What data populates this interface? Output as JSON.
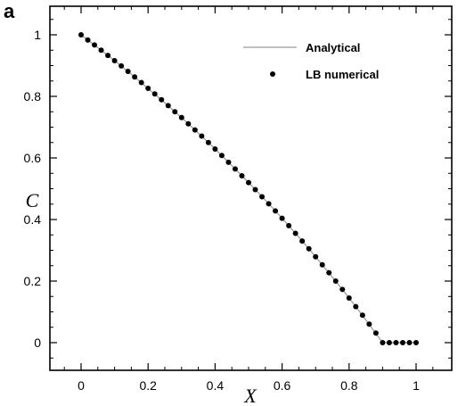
{
  "panel_label": "a",
  "chart_data": {
    "type": "scatter",
    "title": "",
    "xlabel": "X",
    "ylabel": "C",
    "xlim": [
      -0.1,
      1.06
    ],
    "ylim": [
      -0.1,
      1.1
    ],
    "xticks": [
      0,
      0.2,
      0.4,
      0.6,
      0.8,
      1
    ],
    "xtick_labels": [
      "0",
      "0.2",
      "0.4",
      "0.6",
      "0.8",
      "1"
    ],
    "yticks": [
      0,
      0.2,
      0.4,
      0.6,
      0.8,
      1
    ],
    "ytick_labels": [
      "0",
      "0.2",
      "0.4",
      "0.6",
      "0.8",
      "1"
    ],
    "grid": false,
    "legend_position": "top-right",
    "series": [
      {
        "name": "Analytical",
        "style": "line",
        "color": "#999999",
        "x": [
          0,
          0.05,
          0.1,
          0.15,
          0.2,
          0.25,
          0.3,
          0.35,
          0.4,
          0.45,
          0.5,
          0.55,
          0.6,
          0.65,
          0.7,
          0.75,
          0.8,
          0.85,
          0.9,
          0.95,
          1
        ],
        "y": [
          1,
          0.958,
          0.916,
          0.872,
          0.826,
          0.779,
          0.731,
          0.681,
          0.629,
          0.575,
          0.52,
          0.463,
          0.404,
          0.343,
          0.279,
          0.213,
          0.145,
          0.074,
          0.0,
          -0.0,
          0
        ]
      },
      {
        "name": "LB numerical",
        "style": "points",
        "color": "#000000",
        "x": [
          0,
          0.02,
          0.04,
          0.06,
          0.08,
          0.1,
          0.12,
          0.14,
          0.16,
          0.18,
          0.2,
          0.22,
          0.24,
          0.26,
          0.28,
          0.3,
          0.32,
          0.34,
          0.36,
          0.38,
          0.4,
          0.42,
          0.44,
          0.46,
          0.48,
          0.5,
          0.52,
          0.54,
          0.56,
          0.58,
          0.6,
          0.62,
          0.64,
          0.66,
          0.68,
          0.7,
          0.72,
          0.74,
          0.76,
          0.78,
          0.8,
          0.82,
          0.84,
          0.86,
          0.88,
          0.9,
          0.92,
          0.94,
          0.96,
          0.98,
          1
        ],
        "y": [
          1,
          0.983,
          0.967,
          0.95,
          0.933,
          0.916,
          0.899,
          0.881,
          0.863,
          0.845,
          0.826,
          0.808,
          0.789,
          0.77,
          0.75,
          0.731,
          0.711,
          0.691,
          0.671,
          0.65,
          0.629,
          0.608,
          0.586,
          0.564,
          0.542,
          0.52,
          0.497,
          0.474,
          0.451,
          0.428,
          0.404,
          0.38,
          0.355,
          0.33,
          0.305,
          0.279,
          0.253,
          0.227,
          0.2,
          0.173,
          0.145,
          0.117,
          0.089,
          0.06,
          0.031,
          0.0,
          -0.0,
          -0.0,
          0.0,
          0.0,
          0
        ]
      }
    ]
  }
}
